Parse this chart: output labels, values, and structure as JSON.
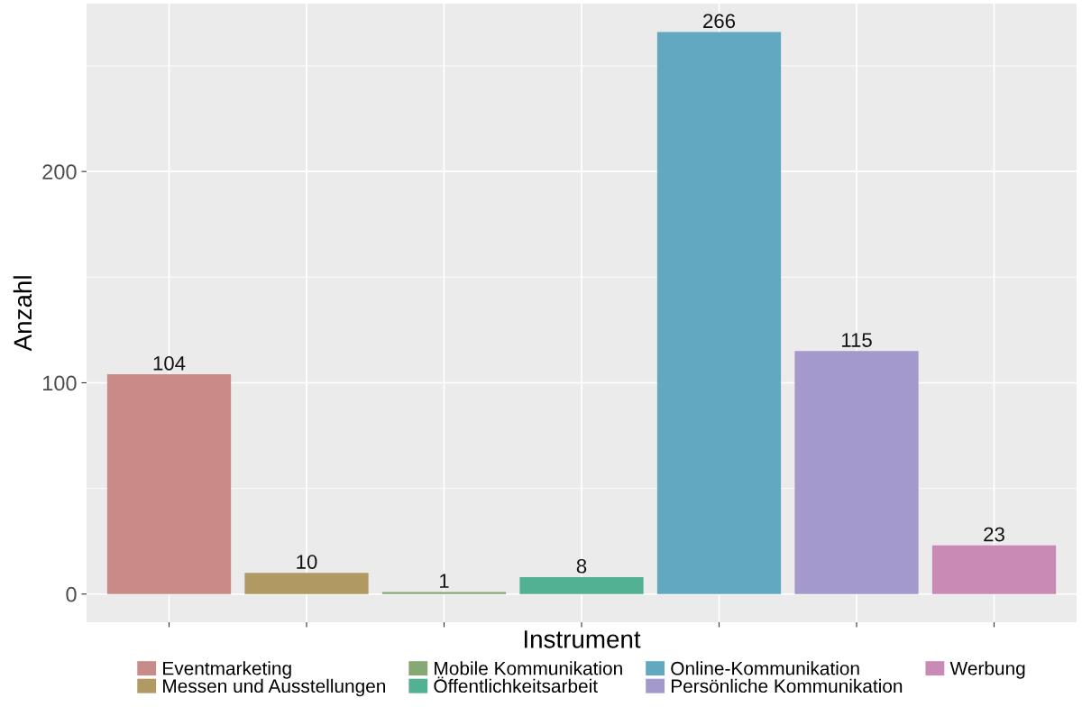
{
  "chart_data": {
    "type": "bar",
    "xlabel": "Instrument",
    "ylabel": "Anzahl",
    "categories": [
      null,
      null,
      null,
      null,
      null,
      null,
      null
    ],
    "series": [
      {
        "name": "Eventmarketing",
        "color": "#c88b88",
        "values": [
          104,
          null,
          null,
          null,
          null,
          null,
          null
        ]
      },
      {
        "name": "Messen und Ausstellungen",
        "color": "#b09a62",
        "values": [
          null,
          10,
          null,
          null,
          null,
          null,
          null
        ]
      },
      {
        "name": "Mobile Kommunikation",
        "color": "#86a874",
        "values": [
          null,
          null,
          1,
          null,
          null,
          null,
          null
        ]
      },
      {
        "name": "Öffentlichkeitsarbeit",
        "color": "#52b093",
        "values": [
          null,
          null,
          null,
          8,
          null,
          null,
          null
        ]
      },
      {
        "name": "Online-Kommunikation",
        "color": "#63a8c1",
        "values": [
          null,
          null,
          null,
          null,
          266,
          null,
          null
        ]
      },
      {
        "name": "Persönliche Kommunikation",
        "color": "#a399cc",
        "values": [
          null,
          null,
          null,
          null,
          null,
          115,
          null
        ]
      },
      {
        "name": "Werbung",
        "color": "#c98bb5",
        "values": [
          null,
          null,
          null,
          null,
          null,
          null,
          23
        ]
      }
    ],
    "ylim": [
      -13.3,
      279.5
    ],
    "yticks": [
      0,
      100,
      200
    ],
    "grid": true,
    "legend": "bottom",
    "tick_labels": "y",
    "data_labels": true
  }
}
